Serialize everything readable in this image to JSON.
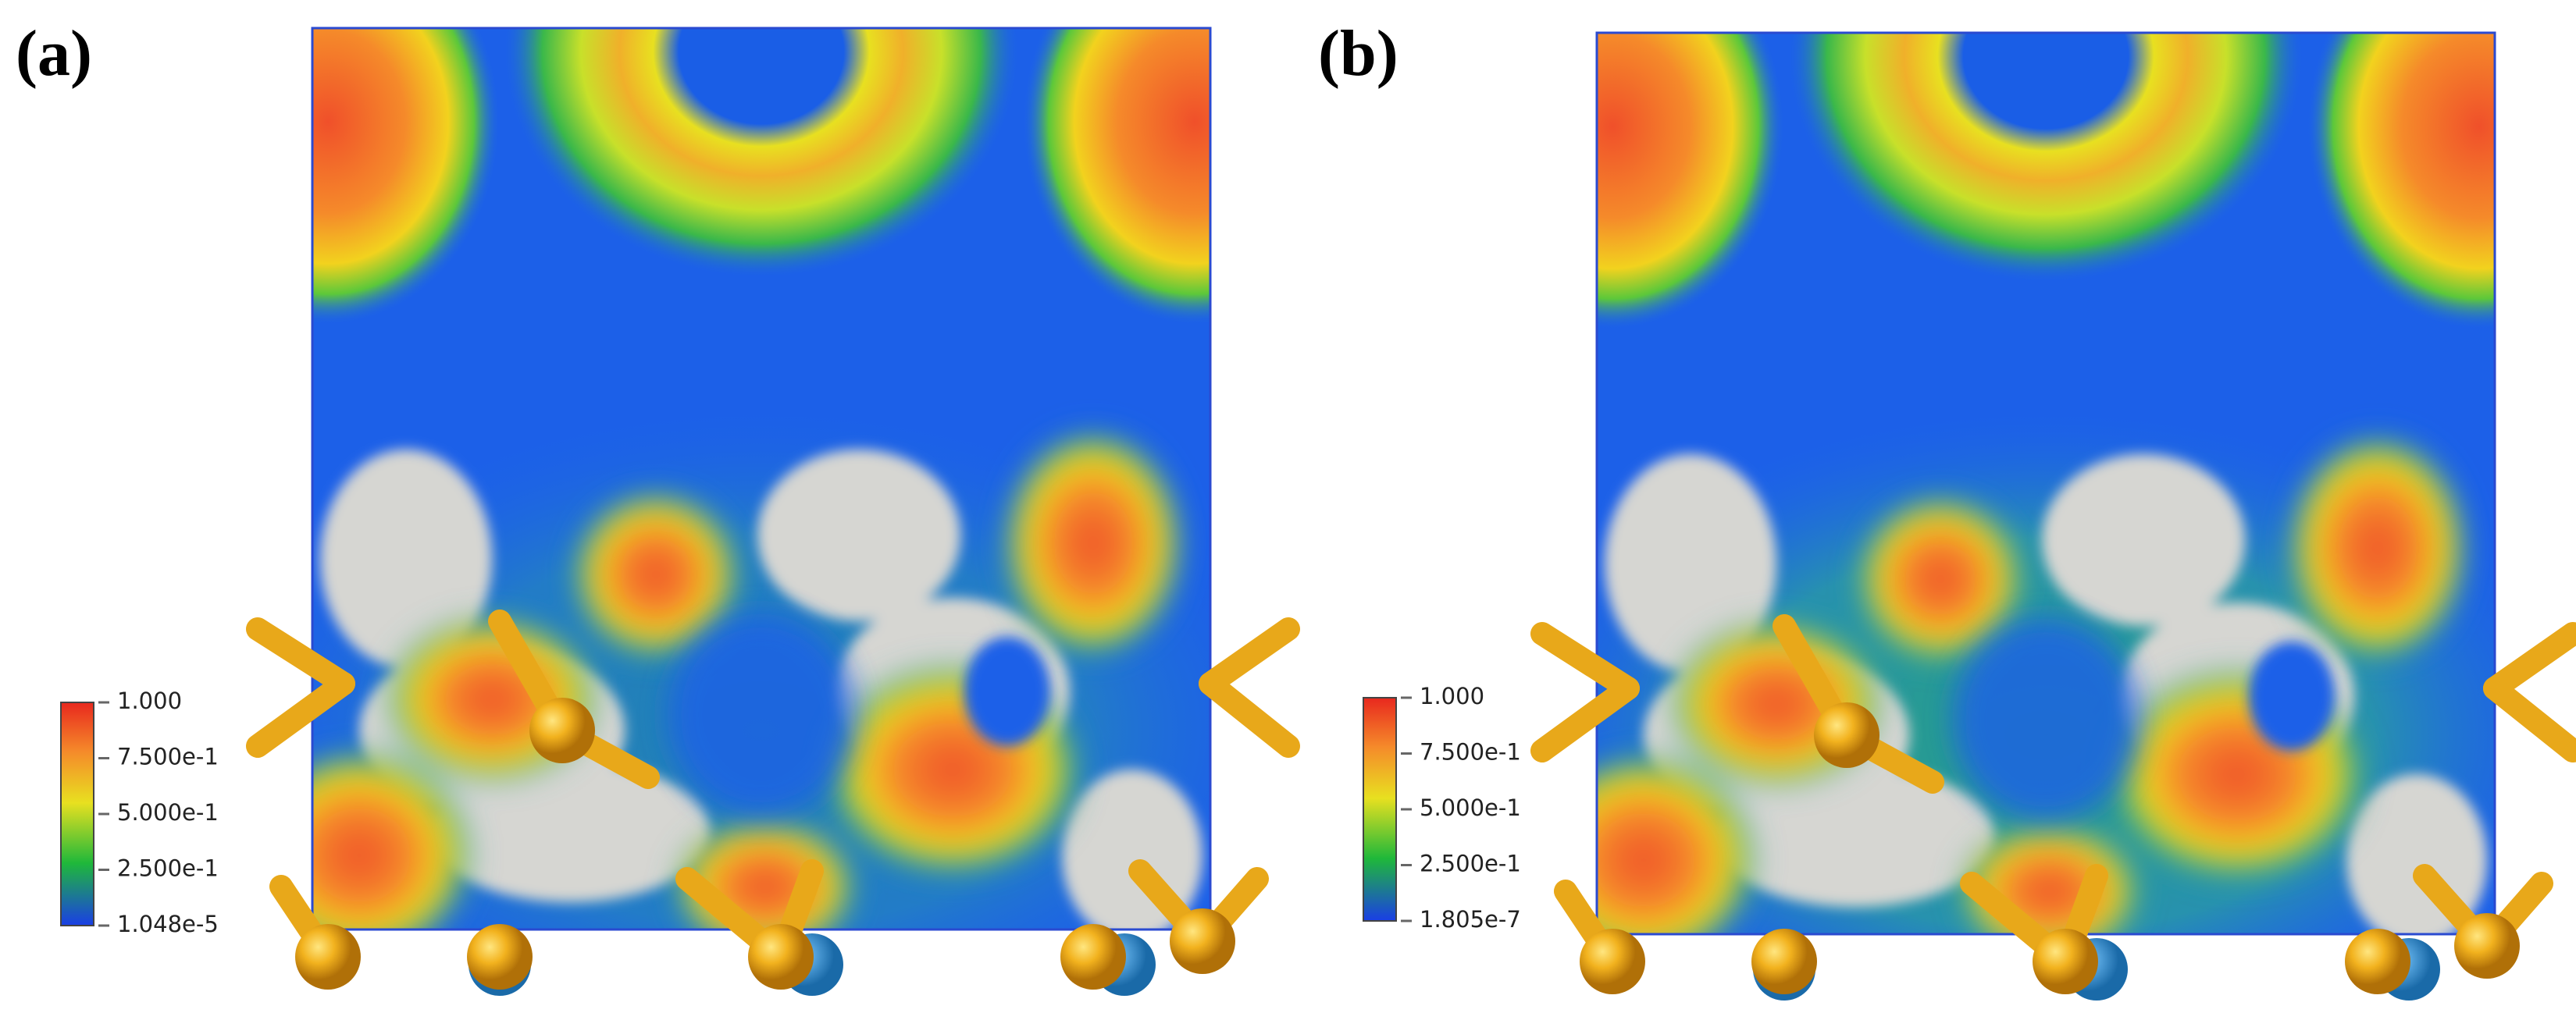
{
  "panels": [
    {
      "label": "(a)",
      "colorbar": {
        "ticks": [
          "1.000",
          "7.500e-1",
          "5.000e-1",
          "2.500e-1",
          "1.048e-5"
        ]
      }
    },
    {
      "label": "(b)",
      "colorbar": {
        "ticks": [
          "1.000",
          "7.500e-1",
          "5.000e-1",
          "2.500e-1",
          "1.805e-7"
        ]
      }
    }
  ]
}
